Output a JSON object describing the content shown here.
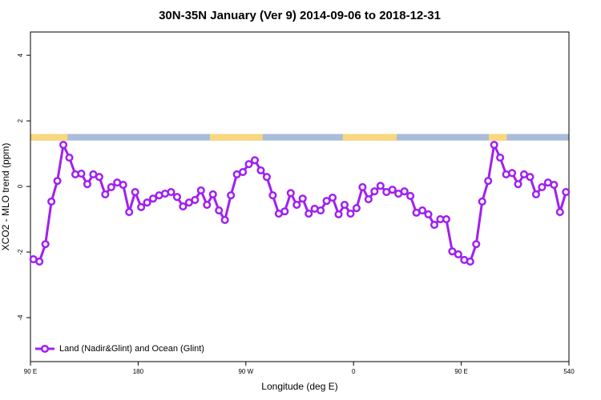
{
  "chart_data": {
    "type": "line",
    "title": "30N-35N January (Ver 9)   2014-09-06 to 2018-12-31",
    "x_label": "Longitude (deg E)",
    "y_label": "XCO2 - MLO trend (ppm)",
    "xlim": [
      90,
      540
    ],
    "xticks": [
      {
        "value": 90,
        "label": "90 E"
      },
      180,
      {
        "value": 270,
        "label": "90 W"
      },
      {
        "value": 360,
        "label": "0"
      },
      {
        "value": 450,
        "label": "90 E"
      },
      540
    ],
    "ylim": [
      -5.34,
      4.71
    ],
    "yticks": [
      -4,
      -2,
      0,
      2,
      4
    ],
    "legend": "bottom-left",
    "band": {
      "ylim": [
        1.4,
        1.6
      ],
      "land_color": "#f9d77e",
      "ocean_color": "#a9bcd9",
      "land": [
        [
          90,
          121
        ],
        [
          240,
          284
        ],
        [
          351,
          396
        ],
        [
          473,
          488
        ]
      ]
    },
    "x": [
      92.5,
      97.5,
      102.5,
      107.5,
      112.5,
      117.5,
      122.5,
      127.5,
      132.5,
      137.5,
      142.5,
      147.5,
      152.5,
      157.5,
      162.5,
      167.5,
      172.5,
      177.5,
      182.5,
      187.5,
      192.5,
      197.5,
      202.5,
      207.5,
      212.5,
      217.5,
      222.5,
      227.5,
      232.5,
      237.5,
      242.5,
      247.5,
      252.5,
      257.5,
      262.5,
      267.5,
      272.5,
      277.5,
      282.5,
      287.5,
      292.5,
      297.5,
      302.5,
      307.5,
      312.5,
      317.5,
      322.5,
      327.5,
      332.5,
      337.5,
      342.5,
      347.5,
      352.5,
      357.5,
      362.5,
      367.5,
      372.5,
      377.5,
      382.5,
      387.5,
      392.5,
      397.5,
      402.5,
      407.5,
      412.5,
      417.5,
      422.5,
      427.5,
      432.5,
      437.5,
      442.5,
      447.5,
      452.5,
      457.5,
      462.5,
      467.5,
      472.5,
      477.5,
      482.5,
      487.5,
      492.5,
      497.5,
      502.5,
      507.5,
      512.5,
      517.5,
      522.5,
      527.5,
      532.5,
      537.5
    ],
    "series": [
      {
        "name": "Land (Nadir&Glint) and Ocean (Glint)",
        "color": "#a020f0",
        "values": [
          -2.22,
          -2.29,
          -1.76,
          -0.46,
          0.17,
          1.27,
          0.88,
          0.37,
          0.39,
          0.07,
          0.37,
          0.29,
          -0.24,
          -0.02,
          0.12,
          0.05,
          -0.78,
          -0.17,
          -0.63,
          -0.49,
          -0.37,
          -0.27,
          -0.22,
          -0.17,
          -0.32,
          -0.61,
          -0.49,
          -0.41,
          -0.12,
          -0.56,
          -0.24,
          -0.73,
          -1.02,
          -0.27,
          0.37,
          0.44,
          0.68,
          0.8,
          0.49,
          0.29,
          -0.27,
          -0.83,
          -0.76,
          -0.2,
          -0.56,
          -0.37,
          -0.83,
          -0.68,
          -0.73,
          -0.44,
          -0.34,
          -0.85,
          -0.56,
          -0.83,
          -0.66,
          -0.02,
          -0.39,
          -0.15,
          0.02,
          -0.17,
          -0.1,
          -0.22,
          -0.15,
          -0.29,
          -0.8,
          -0.73,
          -0.85,
          -1.17,
          -1.0,
          -1.0,
          -1.98,
          -2.07,
          -2.24,
          -2.29,
          -1.76,
          -0.46,
          0.17,
          1.27,
          0.88,
          0.37,
          0.41,
          0.07,
          0.37,
          0.29,
          -0.24,
          -0.02,
          0.12,
          0.05,
          -0.78,
          -0.17
        ]
      }
    ]
  }
}
